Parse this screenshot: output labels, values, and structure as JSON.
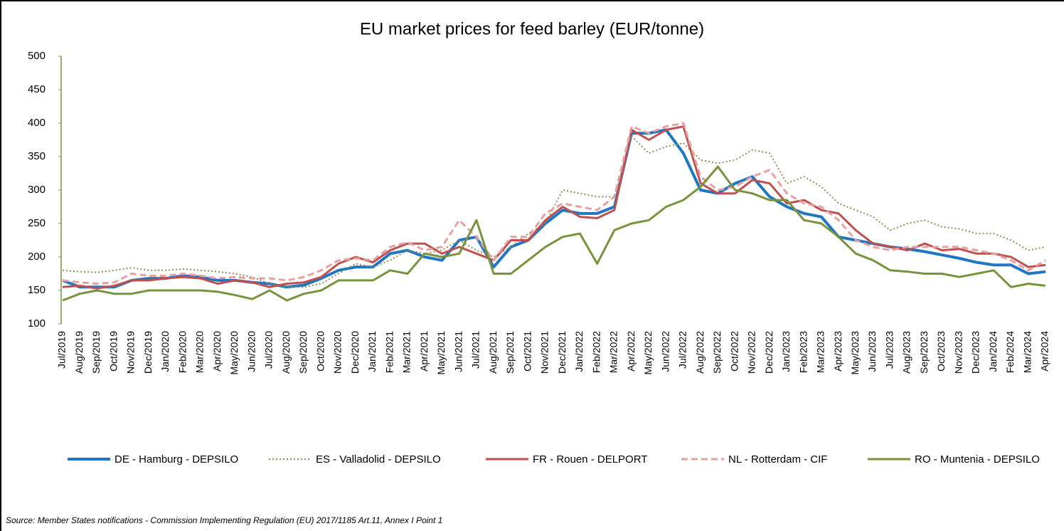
{
  "chart_data": {
    "type": "line",
    "title": "EU market prices for feed barley (EUR/tonne)",
    "source": "Source: Member States notifications - Commission Implementing Regulation (EU) 2017/1185 Art.11, Annex I Point 1",
    "categories": [
      "Jul/2019",
      "Aug/2019",
      "Sep/2019",
      "Oct/2019",
      "Nov/2019",
      "Dec/2019",
      "Jan/2020",
      "Feb/2020",
      "Mar/2020",
      "Apr/2020",
      "May/2020",
      "Jun/2020",
      "Jul/2020",
      "Aug/2020",
      "Sep/2020",
      "Oct/2020",
      "Nov/2020",
      "Dec/2020",
      "Jan/2021",
      "Feb/2021",
      "Mar/2021",
      "Apr/2021",
      "May/2021",
      "Jun/2021",
      "Jul/2021",
      "Aug/2021",
      "Sep/2021",
      "Oct/2021",
      "Nov/2021",
      "Dec/2021",
      "Jan/2022",
      "Feb/2022",
      "Mar/2022",
      "Apr/2022",
      "May/2022",
      "Jun/2022",
      "Jul/2022",
      "Aug/2022",
      "Sep/2022",
      "Oct/2022",
      "Nov/2022",
      "Dec/2022",
      "Jan/2023",
      "Feb/2023",
      "Mar/2023",
      "Apr/2023",
      "May/2023",
      "Jun/2023",
      "Jul/2023",
      "Aug/2023",
      "Sep/2023",
      "Oct/2023",
      "Nov/2023",
      "Dec/2023",
      "Jan/2024",
      "Feb/2024",
      "Mar/2024",
      "Apr/2024"
    ],
    "series": [
      {
        "name": "DE - Hamburg - DEPSILO",
        "color": "#1f77c4",
        "width": 4,
        "dash": "solid",
        "values": [
          165,
          155,
          155,
          155,
          165,
          168,
          168,
          172,
          170,
          165,
          165,
          162,
          160,
          155,
          158,
          168,
          180,
          185,
          185,
          205,
          210,
          200,
          195,
          225,
          230,
          185,
          215,
          225,
          250,
          270,
          265,
          265,
          275,
          385,
          385,
          390,
          355,
          300,
          295,
          310,
          320,
          290,
          275,
          265,
          260,
          230,
          225,
          220,
          215,
          212,
          208,
          203,
          198,
          192,
          188,
          188,
          175,
          178
        ]
      },
      {
        "name": "ES - Valladolid - DEPSILO",
        "color": "#948a54",
        "width": 2,
        "dash": "dotted",
        "values": [
          180,
          178,
          177,
          180,
          184,
          180,
          180,
          182,
          180,
          178,
          175,
          170,
          160,
          155,
          155,
          160,
          175,
          190,
          185,
          195,
          210,
          205,
          210,
          225,
          210,
          200,
          215,
          235,
          250,
          300,
          295,
          290,
          290,
          380,
          355,
          365,
          370,
          345,
          340,
          345,
          360,
          355,
          310,
          320,
          305,
          280,
          270,
          260,
          240,
          250,
          255,
          245,
          242,
          235,
          235,
          225,
          210,
          215
        ]
      },
      {
        "name": "FR - Rouen - DELPORT",
        "color": "#c0504d",
        "width": 3,
        "dash": "solid",
        "values": [
          155,
          157,
          153,
          157,
          165,
          165,
          168,
          170,
          168,
          160,
          165,
          162,
          155,
          160,
          162,
          170,
          190,
          200,
          192,
          210,
          220,
          220,
          205,
          215,
          205,
          195,
          225,
          225,
          255,
          275,
          260,
          258,
          270,
          390,
          375,
          390,
          395,
          310,
          295,
          295,
          315,
          310,
          280,
          285,
          270,
          265,
          240,
          220,
          215,
          210,
          220,
          210,
          212,
          205,
          205,
          200,
          185,
          188
        ]
      },
      {
        "name": "NL - Rotterdam - CIF",
        "color": "#e6a0a0",
        "width": 3,
        "dash": "dashed",
        "values": [
          165,
          162,
          160,
          162,
          175,
          172,
          172,
          175,
          172,
          168,
          170,
          168,
          168,
          165,
          170,
          180,
          195,
          198,
          195,
          215,
          222,
          210,
          215,
          255,
          230,
          195,
          230,
          230,
          265,
          280,
          275,
          270,
          290,
          395,
          385,
          395,
          400,
          320,
          300,
          305,
          320,
          330,
          295,
          280,
          275,
          255,
          225,
          215,
          210,
          215,
          215,
          215,
          215,
          210,
          205,
          195,
          180,
          195
        ]
      },
      {
        "name": "RO - Muntenia - DEPSILO",
        "color": "#77933c",
        "width": 3,
        "dash": "solid",
        "values": [
          135,
          145,
          150,
          145,
          145,
          150,
          150,
          150,
          150,
          148,
          143,
          137,
          150,
          135,
          145,
          150,
          165,
          165,
          165,
          180,
          175,
          205,
          200,
          205,
          255,
          175,
          175,
          195,
          215,
          230,
          235,
          190,
          240,
          250,
          255,
          275,
          285,
          305,
          335,
          300,
          295,
          285,
          285,
          255,
          250,
          230,
          205,
          195,
          180,
          178,
          175,
          175,
          170,
          175,
          180,
          155,
          160,
          157
        ]
      }
    ],
    "ylim": [
      100,
      500
    ],
    "yticks": [
      100,
      150,
      200,
      250,
      300,
      350,
      400,
      450,
      500
    ],
    "grid": false
  }
}
